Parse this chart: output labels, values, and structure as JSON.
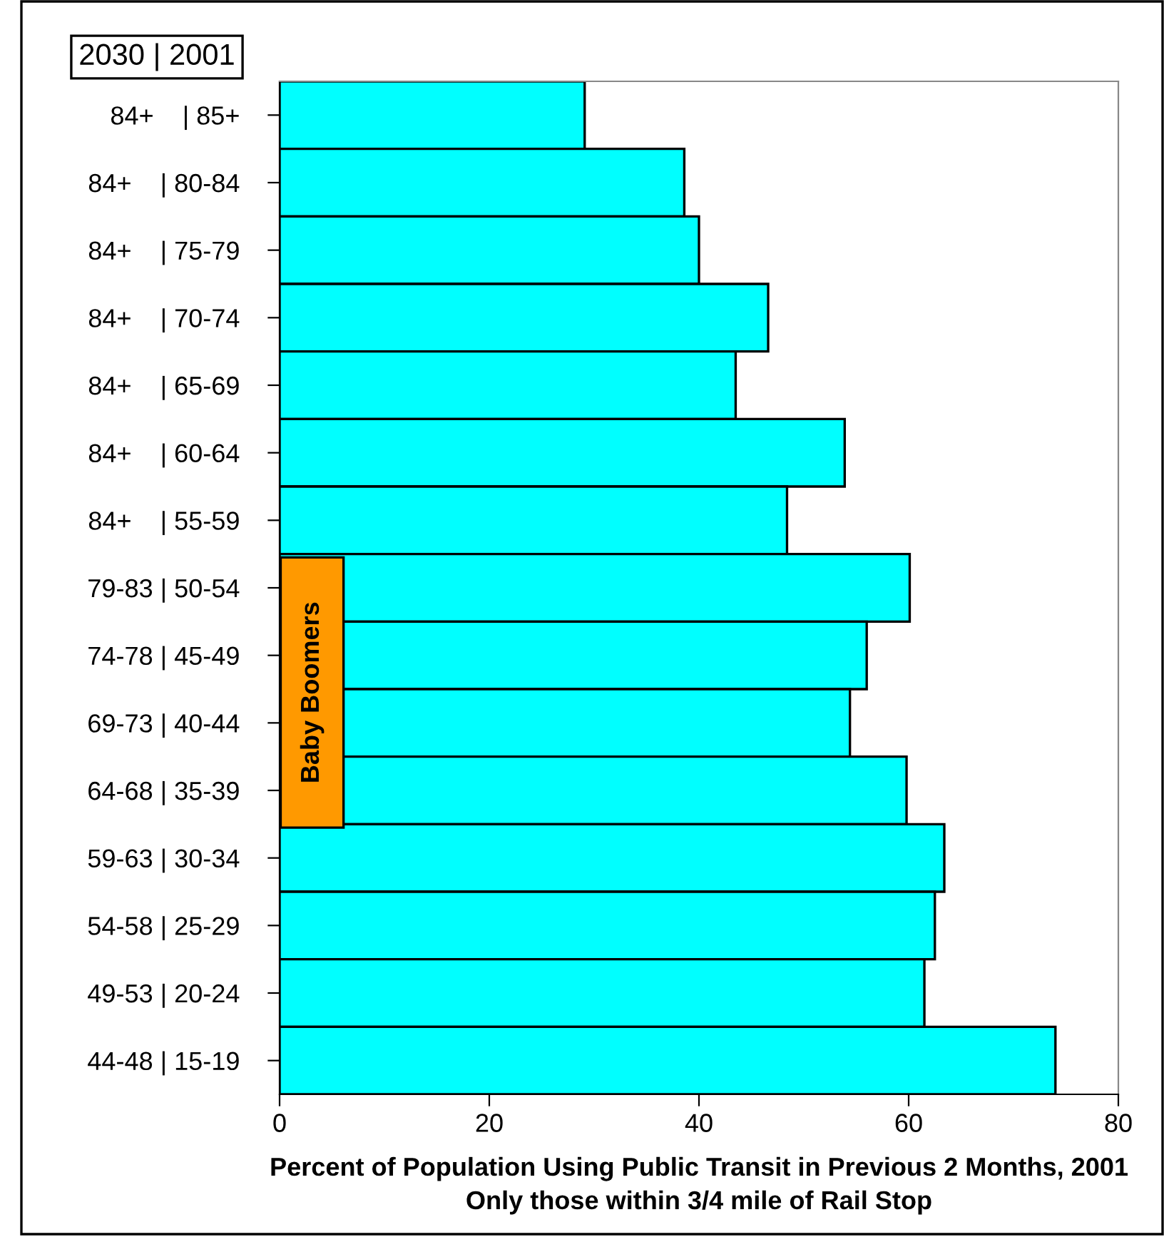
{
  "chart_data": {
    "type": "bar",
    "orientation": "horizontal",
    "xlabel": "Percent of Population Using Public Transit in Previous 2 Months, 2001\nOnly those within 3/4 mile of Rail Stop",
    "categories": [
      "84+    | 85+",
      "84+    | 80-84",
      "84+    | 75-79",
      "84+    | 70-74",
      "84+    | 65-69",
      "84+    | 60-64",
      "84+    | 55-59",
      "79-83 | 50-54",
      "74-78 | 45-49",
      "69-73 | 40-44",
      "64-68 | 35-39",
      "59-63 | 30-34",
      "54-58 | 25-29",
      "49-53 | 20-24",
      "44-48 | 15-19"
    ],
    "values": [
      29.1,
      38.6,
      40.0,
      46.6,
      43.5,
      53.9,
      48.4,
      60.1,
      56.0,
      54.4,
      59.8,
      63.4,
      62.5,
      61.5,
      74.0
    ],
    "color": "#00ffff",
    "xlim": [
      0,
      80
    ],
    "xticks": [
      0,
      20,
      40,
      60,
      80
    ],
    "grid": false,
    "legend": false,
    "annotations": [
      "2030 | 2001",
      "Baby Boomers"
    ]
  }
}
